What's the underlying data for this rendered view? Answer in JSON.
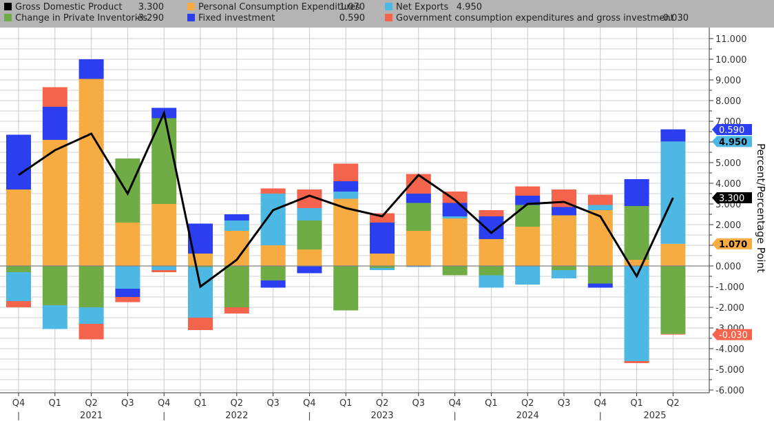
{
  "legend": [
    {
      "key": "gdp",
      "label": "Gross Domestic Product",
      "value": "3.300",
      "color": "#000000"
    },
    {
      "key": "pce",
      "label": "Personal Consumption Expenditures",
      "value": "1.070",
      "color": "#f7ac43"
    },
    {
      "key": "netexp",
      "label": "Net Exports",
      "value": "4.950",
      "color": "#4cb8e3"
    },
    {
      "key": "inv",
      "label": "Change in Private Inventories",
      "value": "-3.290",
      "color": "#6fac45"
    },
    {
      "key": "fixed",
      "label": "Fixed investment",
      "value": "0.590",
      "color": "#2b3ef0"
    },
    {
      "key": "gov",
      "label": "Government consumption expenditures and gross investment",
      "value": "-0.030",
      "color": "#f4634b"
    }
  ],
  "chart_data": {
    "type": "bar",
    "stacked": true,
    "title": "",
    "ylabel": "Percent/Percentage Point",
    "ylim": [
      -6,
      11
    ],
    "yticks": [
      "11.000",
      "10.000",
      "9.000",
      "8.000",
      "7.000",
      "6.000",
      "5.000",
      "4.000",
      "3.000",
      "2.000",
      "1.000",
      "0.000",
      "-1.000",
      "-2.000",
      "-3.000",
      "-4.000",
      "-5.000",
      "-6.000"
    ],
    "grid": true,
    "legend_position": "top",
    "categories": [
      "Q4",
      "Q1",
      "Q2",
      "Q3",
      "Q4",
      "Q1",
      "Q2",
      "Q3",
      "Q4",
      "Q1",
      "Q2",
      "Q3",
      "Q4",
      "Q1",
      "Q2",
      "Q3",
      "Q4",
      "Q1",
      "Q2"
    ],
    "years": [
      {
        "label": "2021",
        "center_index": 2
      },
      {
        "label": "2022",
        "center_index": 6
      },
      {
        "label": "2023",
        "center_index": 10
      },
      {
        "label": "2024",
        "center_index": 14
      },
      {
        "label": "2025",
        "center_index": 17.5
      }
    ],
    "year_separators_after_index": [
      0,
      4,
      8,
      12,
      16
    ],
    "series": [
      {
        "name": "Personal Consumption Expenditures",
        "key": "pce",
        "color": "#f7ac43",
        "values": [
          3.7,
          6.1,
          9.05,
          2.1,
          3.0,
          0.6,
          1.7,
          1.0,
          0.8,
          3.25,
          0.6,
          1.7,
          2.3,
          1.3,
          1.9,
          2.45,
          2.7,
          0.3,
          1.07
        ]
      },
      {
        "name": "Change in Private Inventories",
        "key": "inv",
        "color": "#6fac45",
        "values": [
          -0.3,
          -1.9,
          -2.0,
          3.1,
          4.15,
          -0.05,
          -2.0,
          -0.7,
          1.4,
          -2.15,
          -0.1,
          1.35,
          -0.45,
          -0.45,
          1.05,
          -0.2,
          -0.85,
          2.6,
          -3.29
        ]
      },
      {
        "name": "Net Exports",
        "key": "netexp",
        "color": "#4cb8e3",
        "values": [
          -1.4,
          -1.15,
          -0.8,
          -1.1,
          -0.2,
          -2.45,
          0.5,
          2.5,
          0.6,
          0.35,
          -0.1,
          -0.05,
          0.1,
          -0.6,
          -0.9,
          -0.4,
          0.25,
          -4.6,
          4.95
        ]
      },
      {
        "name": "Fixed investment",
        "key": "fixed",
        "color": "#2b3ef0",
        "values": [
          2.65,
          1.6,
          0.95,
          -0.4,
          0.5,
          1.45,
          0.3,
          -0.35,
          -0.35,
          0.5,
          1.5,
          0.45,
          0.65,
          1.1,
          0.45,
          0.4,
          -0.2,
          1.3,
          0.59
        ]
      },
      {
        "name": "Government consumption expenditures and gross investment",
        "key": "gov",
        "color": "#f4634b",
        "values": [
          -0.3,
          0.95,
          -0.75,
          -0.25,
          -0.1,
          -0.6,
          -0.3,
          0.25,
          0.9,
          0.85,
          0.45,
          0.95,
          0.55,
          0.3,
          0.45,
          0.85,
          0.5,
          -0.1,
          -0.03
        ]
      }
    ],
    "line": {
      "name": "Gross Domestic Product",
      "key": "gdp",
      "color": "#000000",
      "values": [
        4.4,
        5.6,
        6.4,
        3.5,
        7.4,
        -1.0,
        0.3,
        2.7,
        3.4,
        2.8,
        2.4,
        4.4,
        3.2,
        1.6,
        3.0,
        3.1,
        2.4,
        -0.5,
        3.3
      ]
    },
    "last_value_tags": [
      {
        "key": "fixed",
        "text": "0.590",
        "value": 6.6,
        "color": "#2b3ef0",
        "text_color": "#ffffff"
      },
      {
        "key": "netexp",
        "text": "4.950",
        "value": 6.02,
        "color": "#4cb8e3",
        "text_color": "#000000"
      },
      {
        "key": "gdp",
        "text": "3.300",
        "value": 3.3,
        "color": "#000000",
        "text_color": "#ffffff"
      },
      {
        "key": "pce",
        "text": "1.070",
        "value": 1.07,
        "color": "#f7ac43",
        "text_color": "#000000"
      },
      {
        "key": "gov",
        "text": "-0.030",
        "value": -3.32,
        "color": "#f4634b",
        "text_color": "#ffffff"
      }
    ]
  }
}
